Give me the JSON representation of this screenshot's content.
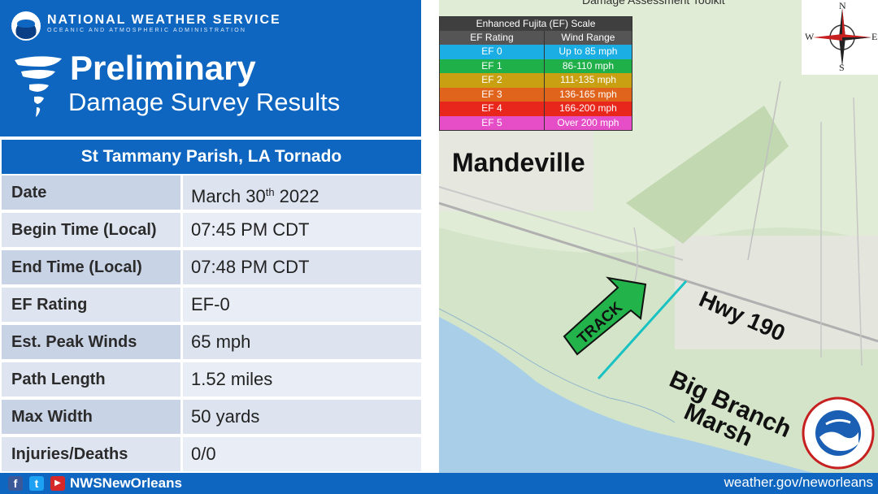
{
  "header": {
    "agency": "NATIONAL WEATHER SERVICE",
    "agency_sub": "OCEANIC AND ATMOSPHERIC ADMINISTRATION",
    "title_main": "Preliminary",
    "title_sub": "Damage Survey Results"
  },
  "event": {
    "title": "St Tammany Parish, LA Tornado"
  },
  "details": [
    {
      "label": "Date",
      "value": "March 30",
      "sup": "th",
      "value_after": " 2022"
    },
    {
      "label": "Begin Time (Local)",
      "value": "07:45 PM CDT"
    },
    {
      "label": "End Time (Local)",
      "value": "07:48 PM CDT"
    },
    {
      "label": "EF Rating",
      "value": "EF-0"
    },
    {
      "label": "Est. Peak Winds",
      "value": "65 mph"
    },
    {
      "label": "Path Length",
      "value": "1.52 miles"
    },
    {
      "label": "Max Width",
      "value": "50 yards"
    },
    {
      "label": "Injuries/Deaths",
      "value": "0/0"
    }
  ],
  "map": {
    "toolkit_title": "Damage Assessment Toolkit",
    "legend": {
      "title": "Enhanced Fujita (EF) Scale",
      "col1": "EF Rating",
      "col2": "Wind Range",
      "rows": [
        {
          "rating": "EF 0",
          "range": "Up to 85 mph",
          "color": "#1aaee5"
        },
        {
          "rating": "EF 1",
          "range": "86-110 mph",
          "color": "#1fb04a"
        },
        {
          "rating": "EF 2",
          "range": "111-135 mph",
          "color": "#c8a012"
        },
        {
          "rating": "EF 3",
          "range": "136-165 mph",
          "color": "#e0641b"
        },
        {
          "rating": "EF 4",
          "range": "166-200 mph",
          "color": "#e8261b"
        },
        {
          "rating": "EF 5",
          "range": "Over 200 mph",
          "color": "#e64ec8"
        }
      ]
    },
    "compass": {
      "n": "N",
      "s": "S",
      "e": "E",
      "w": "W"
    },
    "labels": {
      "mandeville": "Mandeville",
      "hwy": "Hwy 190",
      "marsh_line1": "Big Branch",
      "marsh_line2": "Marsh",
      "track": "TRACK"
    },
    "track_color": "#19c2c2",
    "arrow_color": "#22b34a"
  },
  "footer": {
    "handle": "NWSNewOrleans",
    "website": "weather.gov/neworleans"
  },
  "colors": {
    "nws_blue": "#0e66c0",
    "label_cell": "#c9d3e6",
    "value_cell": "#dde4f0"
  }
}
